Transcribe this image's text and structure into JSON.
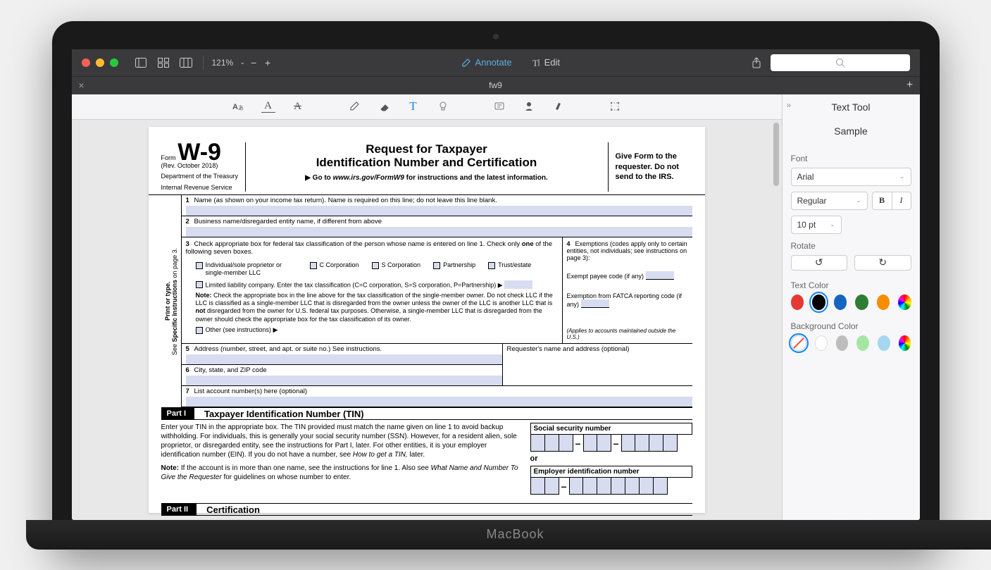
{
  "toolbar": {
    "zoom": "121%",
    "annotate_label": "Annotate",
    "edit_label": "Edit"
  },
  "tab": {
    "title": "fw9"
  },
  "sidebar": {
    "title": "Text Tool",
    "sample": "Sample",
    "font_label": "Font",
    "font_family": "Arial",
    "font_style": "Regular",
    "font_size": "10 pt",
    "rotate_label": "Rotate",
    "text_color_label": "Text Color",
    "bg_color_label": "Background Color",
    "text_colors": [
      "#e53935",
      "#000000",
      "#1565c0",
      "#2e7d32",
      "#fb8c00"
    ],
    "text_color_selected": 1,
    "bg_colors_plain": [
      "#ffffff",
      "#bdbdbd",
      "#a5e6a5",
      "#a5d8f0"
    ],
    "bg_color_selected": "none"
  },
  "form": {
    "form_label": "Form",
    "form_code": "W-9",
    "rev": "(Rev. October 2018)",
    "dept1": "Department of the Treasury",
    "dept2": "Internal Revenue Service",
    "title1": "Request for Taxpayer",
    "title2": "Identification Number and Certification",
    "goto_pre": "▶ Go to ",
    "goto_url": "www.irs.gov/FormW9",
    "goto_post": " for instructions and the latest information.",
    "give_to": "Give Form to the requester. Do not send to the IRS.",
    "side_label_bold": "Print or type.",
    "side_label_rest": "See Specific Instructions on page 3.",
    "line1": "Name (as shown on your income tax return). Name is required on this line; do not leave this line blank.",
    "line2": "Business name/disregarded entity name, if different from above",
    "line3_pre": "Check appropriate box for federal tax classification of the person whose name is entered on line 1. Check only ",
    "line3_bold": "one",
    "line3_post": " of the following seven boxes.",
    "cb": {
      "indiv": "Individual/sole proprietor or single-member LLC",
      "ccorp": "C Corporation",
      "scorp": "S Corporation",
      "partnership": "Partnership",
      "trust": "Trust/estate",
      "llc": "Limited liability company. Enter the tax classification (C=C corporation, S=S corporation, P=Partnership) ▶",
      "other": "Other (see instructions) ▶"
    },
    "note_label": "Note:",
    "note_text_1": " Check the appropriate box in the line above for the tax classification of the single-member owner. Do not check LLC if the LLC is classified as a single-member LLC that is disregarded from the owner unless the owner of the LLC is another LLC that is ",
    "note_bold_not": "not",
    "note_text_2": " disregarded from the owner for U.S. federal tax purposes. Otherwise, a single-member LLC that is disregarded from the owner should check the appropriate box for the tax classification of its owner.",
    "line4_title": "Exemptions (codes apply only to certain entities, not individuals; see instructions on page 3):",
    "exempt_payee": "Exempt payee code (if any)",
    "exempt_fatca": "Exemption from FATCA reporting code (if any)",
    "applies_note": "(Applies to accounts maintained outside the U.S.)",
    "line5": "Address (number, street, and apt. or suite no.) See instructions.",
    "requester": "Requester's name and address (optional)",
    "line6": "City, state, and ZIP code",
    "line7": "List account number(s) here (optional)",
    "part1_label": "Part I",
    "part1_title": "Taxpayer Identification Number (TIN)",
    "part1_p1": "Enter your TIN in the appropriate box. The TIN provided must match the name given on line 1 to avoid backup withholding. For individuals, this is generally your social security number (SSN). However, for a resident alien, sole proprietor, or disregarded entity, see the instructions for Part I, later. For other entities, it is your employer identification number (EIN). If you do not have a number, see ",
    "part1_p1_italic": "How to get a TIN,",
    "part1_p1_post": " later.",
    "part1_note_label": "Note:",
    "part1_note": " If the account is in more than one name, see the instructions for line 1. Also see ",
    "part1_note_italic": "What Name and Number To Give the Requester",
    "part1_note_post": " for guidelines on whose number to enter.",
    "ssn_label": "Social security number",
    "or_label": "or",
    "ein_label": "Employer identification number",
    "part2_label": "Part II",
    "part2_title": "Certification"
  },
  "laptop_brand": "MacBook"
}
